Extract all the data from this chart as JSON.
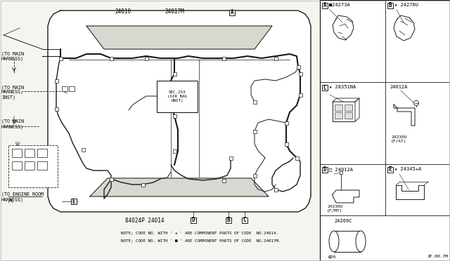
{
  "bg_color": "#f5f5f0",
  "line_color": "#1a1a1a",
  "panel_bg": "#ffffff",
  "part_ref": "JP.00.7M",
  "notes_line1": "NOTE; CODE NO. WITH ' ★ ' ARE COMPONENT PARTS OF CODE  NO.24014.",
  "notes_line2": "NOTE; CODE NO. WITH ' ■ ' ARE COMPONENT PARTS OF CODE  NO.24017M.",
  "top_code1": "24010",
  "top_code2": "24017M",
  "bottom_left_code": "84024P 24014",
  "part_A_label": "■24273A",
  "part_B_label": "★ 24276U",
  "part_C_label": "★ 28351NA",
  "part_D1_label": "24012A",
  "part_D1_sub": "24230U\n(F/AT)",
  "part_D2_label": "□ 24012A",
  "part_D2_sub": "24230U\n(F/MT)",
  "part_E_label": "★ 24345+A",
  "part_grommet": "24269C",
  "part_grommet_size": "φ20",
  "airbag_label": "SEC.253\n(AIR BAG\nUNIT)",
  "left_label1": "(TO MAIN\nHARNESS)",
  "left_label2": "(TO MAIN\nHARNESS,\nINST)",
  "left_label3": "(TO MAIN\nHARNESS)",
  "left_label4": "(TO ENGINE ROOM\nHARNESS)"
}
